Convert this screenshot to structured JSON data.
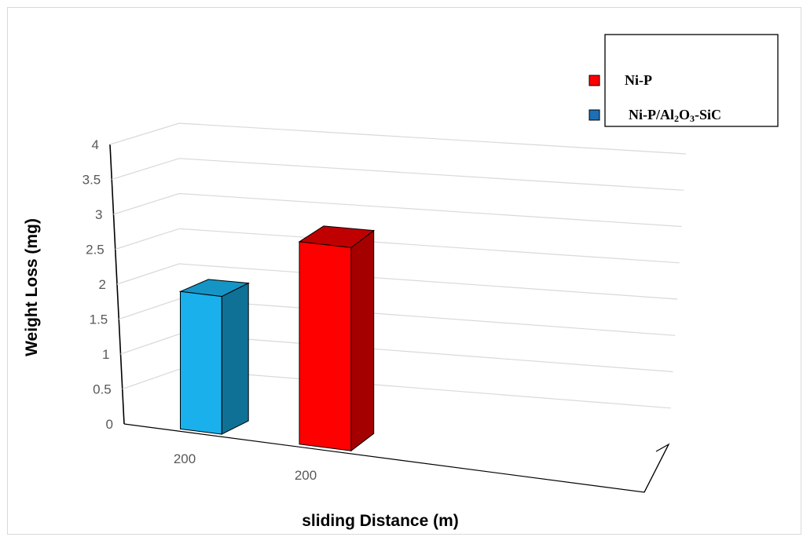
{
  "chart_data": {
    "type": "bar",
    "style": "3d-column",
    "categories": [
      "200",
      "200"
    ],
    "series": [
      {
        "name": "Ni-P/Al2O3-SiC",
        "values": [
          1.95,
          null
        ],
        "color": "#1ab0ec",
        "side_color": "#0f7196",
        "top_color": "#1595c6"
      },
      {
        "name": "Ni-P",
        "values": [
          null,
          2.85
        ],
        "color": "#ff0000",
        "side_color": "#a50000",
        "top_color": "#c00000"
      }
    ],
    "ylabel": "Weight Loss (mg)",
    "xlabel": "sliding Distance (m)",
    "ylim": [
      0,
      4
    ],
    "yticks": [
      "0",
      "0.5",
      "1",
      "1.5",
      "2",
      "2.5",
      "3",
      "3.5",
      "4"
    ],
    "grid": true,
    "legend": {
      "position": "top-right",
      "entries": [
        {
          "label": "Ni-P",
          "color": "#ff0000"
        },
        {
          "label_parts": [
            "Ni-P/Al",
            "2",
            "O",
            "3",
            "-SiC"
          ],
          "color": "#1f6fb4"
        }
      ]
    }
  }
}
